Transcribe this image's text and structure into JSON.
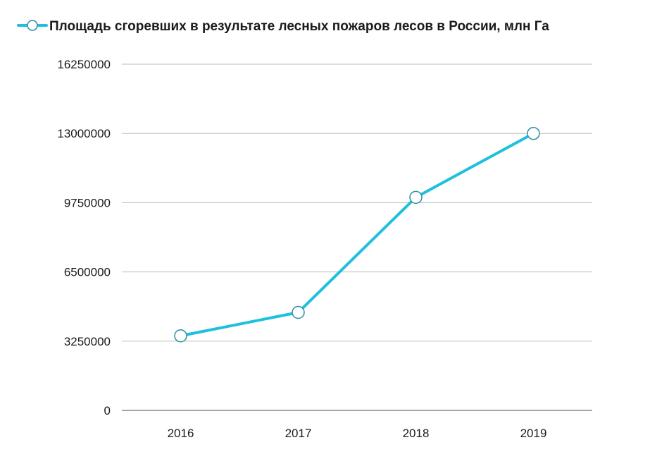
{
  "chart_data": {
    "type": "line",
    "categories": [
      "2016",
      "2017",
      "2018",
      "2019"
    ],
    "series": [
      {
        "name": "Площадь сгоревших в результате лесных пожаров лесов в России, млн Га",
        "values": [
          3500000,
          4600000,
          10000000,
          13000000
        ]
      }
    ],
    "ylim": [
      0,
      16250000
    ],
    "yticks": [
      0,
      3250000,
      6500000,
      9750000,
      13000000,
      16250000
    ],
    "ytick_labels": [
      "0",
      "3250000",
      "6500000",
      "9750000",
      "13000000",
      "16250000"
    ],
    "grid": true,
    "legend_position": "top-left",
    "colors": {
      "series": "#1fc0de",
      "point_outline": "#2b8fa3",
      "grid": "#bdbdbd",
      "axis": "#4d4d4d"
    }
  }
}
